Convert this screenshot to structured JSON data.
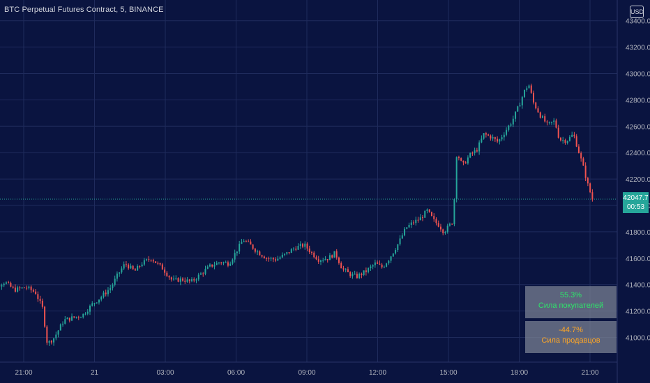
{
  "header": {
    "title": "BTC Perpetual Futures Contract, 5, BINANCE",
    "currency": "USD"
  },
  "price_tag": {
    "price": "42047.7",
    "countdown": "00:53"
  },
  "indicator": {
    "buyers": {
      "percent": "55.3%",
      "label": "Сила покупателей"
    },
    "sellers": {
      "percent": "-44.7%",
      "label": "Сила продавцов"
    }
  },
  "colors": {
    "background": "#0a1440",
    "grid": "#1f2b5c",
    "up": "#26a69a",
    "down": "#ef5350",
    "axis_text": "#b2b5be"
  },
  "chart_data": {
    "type": "candlestick",
    "title": "BTC Perpetual Futures Contract, 5, BINANCE",
    "y_ticks": [
      "41000.0",
      "41200.0",
      "41400.0",
      "41600.0",
      "41800.0",
      "42000.0",
      "42200.0",
      "42400.0",
      "42600.0",
      "42800.0",
      "43000.0",
      "43200.0",
      "43400.0"
    ],
    "x_ticks": [
      "21:00",
      "21",
      "03:00",
      "06:00",
      "09:00",
      "12:00",
      "15:00",
      "18:00",
      "21:00"
    ],
    "ylim": [
      40900,
      43480
    ],
    "x_range_hours": [
      19.3,
      46.0
    ],
    "last_price": 42047.7,
    "grid": true,
    "close_path": [
      [
        19.3,
        41100
      ],
      [
        19.7,
        41380
      ],
      [
        20.2,
        41420
      ],
      [
        20.6,
        41360
      ],
      [
        21.1,
        41380
      ],
      [
        21.5,
        41340
      ],
      [
        21.8,
        41220
      ],
      [
        22.0,
        40950
      ],
      [
        22.3,
        41000
      ],
      [
        22.7,
        41130
      ],
      [
        23.1,
        41150
      ],
      [
        23.5,
        41170
      ],
      [
        23.9,
        41250
      ],
      [
        24.3,
        41310
      ],
      [
        24.7,
        41380
      ],
      [
        25.0,
        41480
      ],
      [
        25.3,
        41560
      ],
      [
        25.7,
        41500
      ],
      [
        26.0,
        41560
      ],
      [
        26.4,
        41600
      ],
      [
        26.9,
        41520
      ],
      [
        27.3,
        41430
      ],
      [
        27.7,
        41440
      ],
      [
        28.1,
        41420
      ],
      [
        28.5,
        41480
      ],
      [
        28.9,
        41540
      ],
      [
        29.3,
        41570
      ],
      [
        29.7,
        41560
      ],
      [
        30.0,
        41650
      ],
      [
        30.3,
        41740
      ],
      [
        30.6,
        41700
      ],
      [
        30.9,
        41650
      ],
      [
        31.3,
        41600
      ],
      [
        31.7,
        41590
      ],
      [
        32.1,
        41630
      ],
      [
        32.5,
        41680
      ],
      [
        32.9,
        41700
      ],
      [
        33.2,
        41640
      ],
      [
        33.5,
        41590
      ],
      [
        33.9,
        41600
      ],
      [
        34.2,
        41640
      ],
      [
        34.5,
        41520
      ],
      [
        34.8,
        41480
      ],
      [
        35.1,
        41460
      ],
      [
        35.5,
        41500
      ],
      [
        35.9,
        41560
      ],
      [
        36.2,
        41530
      ],
      [
        36.5,
        41600
      ],
      [
        36.9,
        41720
      ],
      [
        37.2,
        41830
      ],
      [
        37.5,
        41870
      ],
      [
        37.8,
        41900
      ],
      [
        38.1,
        41960
      ],
      [
        38.4,
        41880
      ],
      [
        38.6,
        41850
      ],
      [
        38.8,
        41800
      ],
      [
        39.0,
        41840
      ],
      [
        39.2,
        41880
      ],
      [
        39.35,
        42400
      ],
      [
        39.6,
        42300
      ],
      [
        39.9,
        42380
      ],
      [
        40.2,
        42420
      ],
      [
        40.5,
        42540
      ],
      [
        40.8,
        42520
      ],
      [
        41.1,
        42480
      ],
      [
        41.4,
        42560
      ],
      [
        41.7,
        42640
      ],
      [
        42.0,
        42760
      ],
      [
        42.2,
        42860
      ],
      [
        42.4,
        42920
      ],
      [
        42.6,
        42780
      ],
      [
        42.9,
        42680
      ],
      [
        43.2,
        42610
      ],
      [
        43.5,
        42640
      ],
      [
        43.7,
        42500
      ],
      [
        44.0,
        42490
      ],
      [
        44.3,
        42540
      ],
      [
        44.5,
        42420
      ],
      [
        44.7,
        42300
      ],
      [
        44.9,
        42160
      ],
      [
        45.1,
        42047
      ]
    ],
    "series": [
      {
        "name": "",
        "candle_count": 270
      }
    ]
  }
}
